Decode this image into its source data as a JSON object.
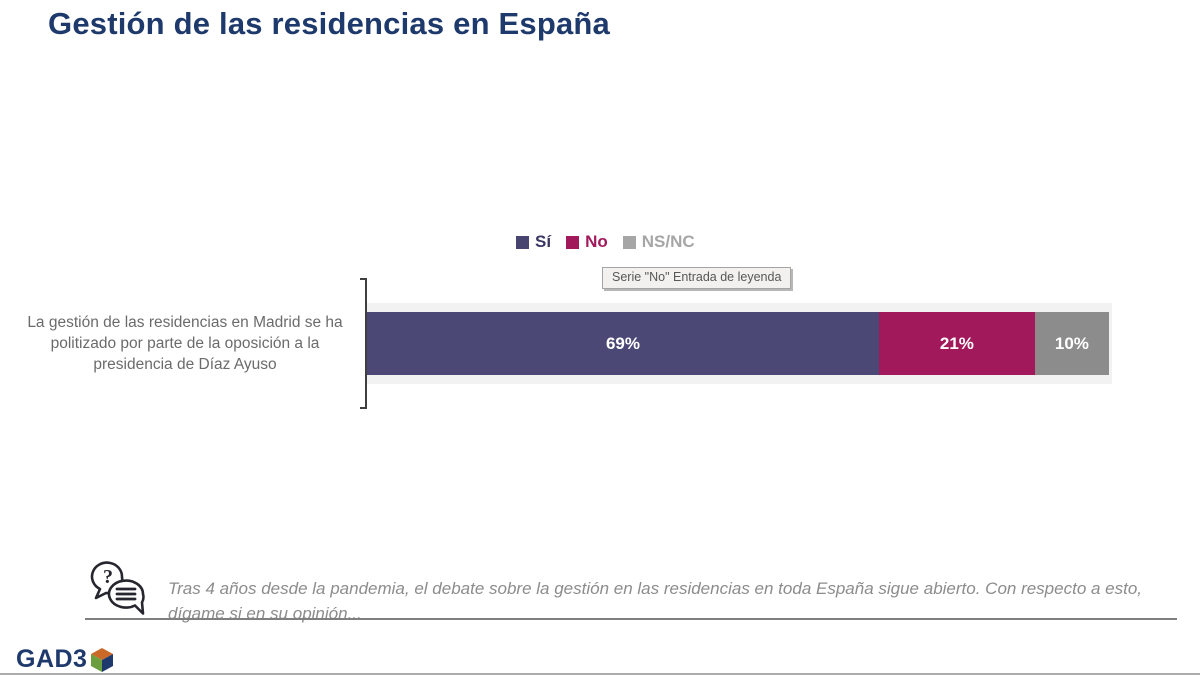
{
  "slide": {
    "title": "Gestión de las residencias en España"
  },
  "tooltip": {
    "text": "Serie \"No\" Entrada de leyenda"
  },
  "chart_data": {
    "type": "bar",
    "orientation": "horizontal",
    "stacked": true,
    "title": "Gestión de las residencias en España",
    "categories": [
      "La gestión de las residencias en Madrid se ha politizado por parte de la oposición a la presidencia de Díaz Ayuso"
    ],
    "series": [
      {
        "name": "Sí",
        "values": [
          69
        ],
        "label": "69%",
        "color": "#4C4876",
        "swatch_color": "#47446F",
        "legend_text_color": "#3A3763"
      },
      {
        "name": "No",
        "values": [
          21
        ],
        "label": "21%",
        "color": "#A2195B",
        "swatch_color": "#A2195B",
        "legend_text_color": "#A2195B"
      },
      {
        "name": "NS/NC",
        "values": [
          10
        ],
        "label": "10%",
        "color": "#8C8C8C",
        "swatch_color": "#A6A6A6",
        "legend_text_color": "#A6A6A6"
      }
    ],
    "xlim": [
      0,
      100
    ],
    "legend_position": "top-center",
    "grid": false,
    "data_labels": "inside-center, white bold percentages"
  },
  "footer": {
    "note_line1": "Tras 4 años desde la pandemia, el debate sobre la gestión en las residencias en toda España sigue abierto. Con respecto a esto,",
    "note_line2": "dígame si en su opinión...",
    "icon": "question-chat-icon"
  },
  "logo": {
    "text": "GAD3",
    "cube_colors": {
      "top": "#C96A28",
      "left": "#6B9E3E",
      "right": "#1E396B"
    }
  }
}
